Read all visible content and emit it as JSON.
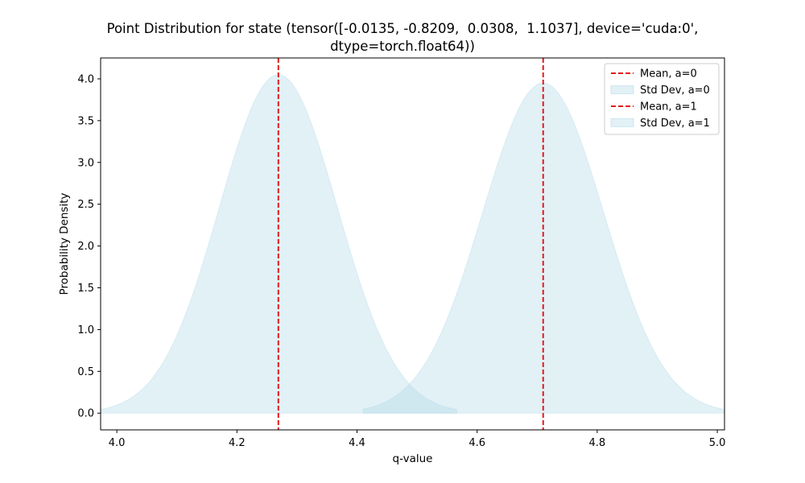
{
  "chart_data": {
    "type": "area",
    "title_line1": "Point Distribution for state (tensor([-0.0135, -0.8209,  0.0308,  1.1037], device='cuda:0',",
    "title_line2": "dtype=torch.float64))",
    "xlabel": "q-value",
    "ylabel": "Probability Density",
    "xlim": [
      3.973,
      5.012
    ],
    "ylim": [
      -0.2,
      4.25
    ],
    "xticks": [
      4.0,
      4.2,
      4.4,
      4.6,
      4.8,
      5.0
    ],
    "xtick_labels": [
      "4.0",
      "4.2",
      "4.4",
      "4.6",
      "4.8",
      "5.0"
    ],
    "yticks": [
      0.0,
      0.5,
      1.0,
      1.5,
      2.0,
      2.5,
      3.0,
      3.5,
      4.0
    ],
    "ytick_labels": [
      "0.0",
      "0.5",
      "1.0",
      "1.5",
      "2.0",
      "2.5",
      "3.0",
      "3.5",
      "4.0"
    ],
    "grid": false,
    "legend_position": "top-right",
    "series": [
      {
        "action": "a=0",
        "mean": 4.269,
        "std": 0.0985,
        "peak_density": 4.05,
        "range": [
          3.973,
          4.566
        ],
        "mean_label": "Mean, a=0",
        "std_label": "Std Dev, a=0",
        "mean_color": "#e41a1c",
        "fill_color": "#add8e6"
      },
      {
        "action": "a=1",
        "mean": 4.71,
        "std": 0.101,
        "peak_density": 3.95,
        "range": [
          4.41,
          5.012
        ],
        "mean_label": "Mean, a=1",
        "std_label": "Std Dev, a=1",
        "mean_color": "#e41a1c",
        "fill_color": "#add8e6"
      }
    ]
  }
}
